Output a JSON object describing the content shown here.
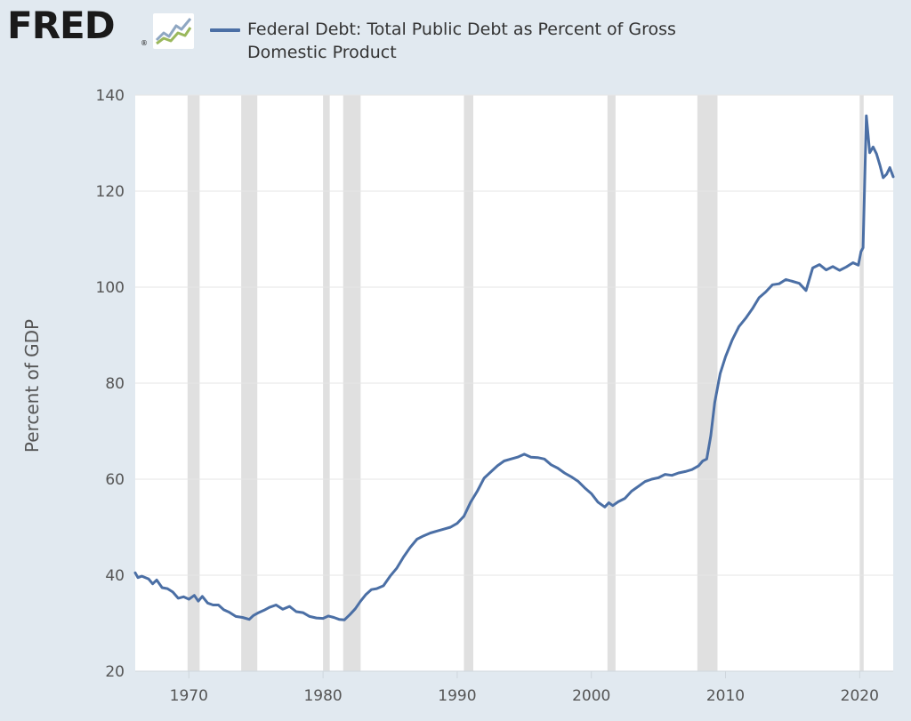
{
  "header": {
    "logo_text": "FRED",
    "logo_reg": "®",
    "logo_icon": "fred-chart-icon"
  },
  "legend": {
    "label": "Federal Debt: Total Public Debt as Percent of Gross Domestic Product",
    "color": "#4b6fa5"
  },
  "colors": {
    "background": "#e1e9f0",
    "plot_background": "#ffffff",
    "recession_shading": "#e0e0e0",
    "gridline": "#e6e6e6",
    "line": "#4b6fa5"
  },
  "chart_data": {
    "type": "line",
    "title": "Federal Debt: Total Public Debt as Percent of Gross Domestic Product",
    "xlabel": "",
    "ylabel": "Percent of GDP",
    "xlim": [
      1966.0,
      2022.5
    ],
    "ylim": [
      20,
      140
    ],
    "grid": true,
    "legend_position": "top",
    "x_ticks": [
      1970,
      1980,
      1990,
      2000,
      2010,
      2020
    ],
    "y_ticks": [
      20,
      40,
      60,
      80,
      100,
      120,
      140
    ],
    "recessions": [
      [
        1969.9,
        1970.8
      ],
      [
        1973.9,
        1975.1
      ],
      [
        1980.0,
        1980.5
      ],
      [
        1981.5,
        1982.8
      ],
      [
        1990.5,
        1991.2
      ],
      [
        2001.2,
        2001.8
      ],
      [
        2007.9,
        2009.4
      ],
      [
        2020.0,
        2020.3
      ]
    ],
    "series": [
      {
        "name": "Federal Debt: Total Public Debt as Percent of Gross Domestic Product",
        "color": "#4b6fa5",
        "x": [
          1966.0,
          1966.2,
          1966.5,
          1967.0,
          1967.3,
          1967.6,
          1968.0,
          1968.4,
          1968.8,
          1969.2,
          1969.6,
          1970.0,
          1970.4,
          1970.7,
          1971.0,
          1971.4,
          1971.8,
          1972.2,
          1972.6,
          1973.0,
          1973.5,
          1974.0,
          1974.5,
          1974.8,
          1975.2,
          1975.6,
          1976.0,
          1976.5,
          1977.0,
          1977.5,
          1978.0,
          1978.5,
          1979.0,
          1979.5,
          1980.0,
          1980.4,
          1980.8,
          1981.2,
          1981.6,
          1982.0,
          1982.4,
          1982.8,
          1983.2,
          1983.6,
          1984.0,
          1984.5,
          1985.0,
          1985.5,
          1986.0,
          1986.5,
          1987.0,
          1987.5,
          1988.0,
          1988.5,
          1989.0,
          1989.5,
          1990.0,
          1990.5,
          1991.0,
          1991.5,
          1992.0,
          1992.5,
          1993.0,
          1993.5,
          1994.0,
          1994.5,
          1995.0,
          1995.5,
          1996.0,
          1996.5,
          1997.0,
          1997.5,
          1998.0,
          1998.5,
          1999.0,
          1999.5,
          2000.0,
          2000.5,
          2001.0,
          2001.3,
          2001.6,
          2002.0,
          2002.5,
          2003.0,
          2003.5,
          2004.0,
          2004.5,
          2005.0,
          2005.5,
          2006.0,
          2006.5,
          2007.0,
          2007.5,
          2008.0,
          2008.3,
          2008.6,
          2008.9,
          2009.2,
          2009.6,
          2010.0,
          2010.5,
          2011.0,
          2011.5,
          2012.0,
          2012.5,
          2013.0,
          2013.5,
          2014.0,
          2014.5,
          2015.0,
          2015.5,
          2016.0,
          2016.5,
          2017.0,
          2017.5,
          2018.0,
          2018.5,
          2019.0,
          2019.5,
          2019.9,
          2020.1,
          2020.25,
          2020.5,
          2020.75,
          2021.0,
          2021.25,
          2021.5,
          2021.75,
          2022.0,
          2022.25,
          2022.5
        ],
        "y": [
          40.5,
          39.5,
          39.8,
          39.2,
          38.2,
          39.0,
          37.4,
          37.2,
          36.5,
          35.2,
          35.5,
          35.0,
          35.8,
          34.6,
          35.6,
          34.2,
          33.8,
          33.8,
          32.8,
          32.3,
          31.4,
          31.2,
          30.8,
          31.6,
          32.2,
          32.7,
          33.3,
          33.8,
          32.9,
          33.5,
          32.4,
          32.2,
          31.4,
          31.1,
          31.0,
          31.5,
          31.2,
          30.8,
          30.7,
          31.8,
          33.0,
          34.6,
          36.0,
          37.0,
          37.2,
          37.8,
          39.8,
          41.5,
          43.8,
          45.8,
          47.5,
          48.2,
          48.8,
          49.2,
          49.6,
          50.0,
          50.8,
          52.3,
          55.2,
          57.5,
          60.2,
          61.5,
          62.8,
          63.8,
          64.2,
          64.6,
          65.2,
          64.6,
          64.5,
          64.2,
          63.0,
          62.3,
          61.3,
          60.5,
          59.6,
          58.2,
          57.0,
          55.2,
          54.2,
          55.1,
          54.5,
          55.3,
          56.0,
          57.5,
          58.5,
          59.5,
          60.0,
          60.3,
          61.0,
          60.8,
          61.3,
          61.6,
          62.0,
          62.8,
          63.8,
          64.2,
          69.0,
          76.0,
          82.0,
          85.5,
          89.0,
          91.8,
          93.5,
          95.5,
          97.8,
          99.0,
          100.5,
          100.7,
          101.6,
          101.2,
          100.8,
          99.3,
          104.0,
          104.7,
          103.6,
          104.3,
          103.5,
          104.2,
          105.1,
          104.6,
          107.4,
          108.2,
          135.7,
          128.0,
          129.2,
          127.8,
          125.5,
          122.8,
          123.5,
          124.9,
          123.0
        ]
      }
    ]
  }
}
